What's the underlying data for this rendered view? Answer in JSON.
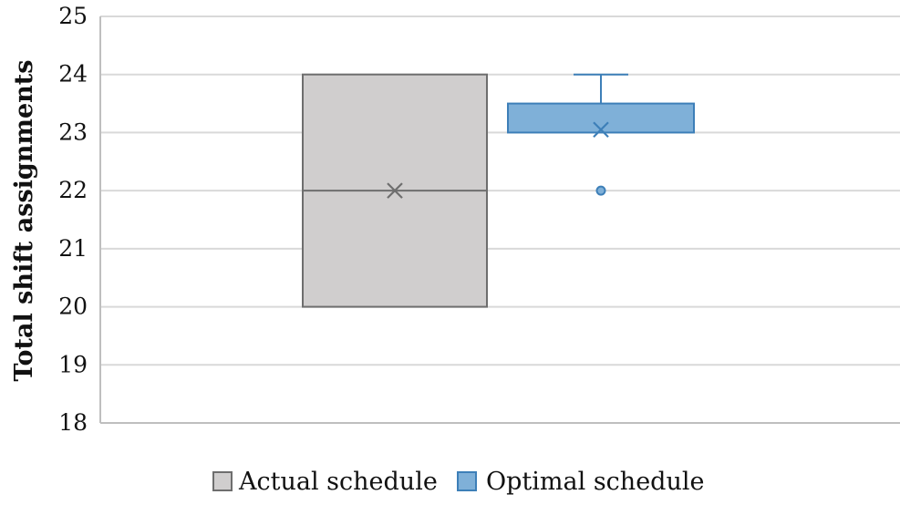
{
  "chart_data": {
    "type": "box",
    "ylabel": "Total shift assignments",
    "ylim": [
      18,
      25
    ],
    "yticks": [
      "18",
      "19",
      "20",
      "21",
      "22",
      "23",
      "24",
      "25"
    ],
    "grid": true,
    "legend_position": "bottom",
    "series": [
      {
        "name": "Actual schedule",
        "color": "#d0cece",
        "stroke": "#6e6e6e",
        "min": 20,
        "q1": 20,
        "median": 22,
        "q3": 24,
        "max": 24,
        "mean": 22,
        "outliers": []
      },
      {
        "name": "Optimal schedule",
        "color": "#7fb0d8",
        "stroke": "#3d7fb8",
        "min": 23,
        "q1": 23,
        "median": 23,
        "q3": 23.5,
        "max": 24,
        "mean": 23.05,
        "outliers": [
          22
        ]
      }
    ]
  }
}
